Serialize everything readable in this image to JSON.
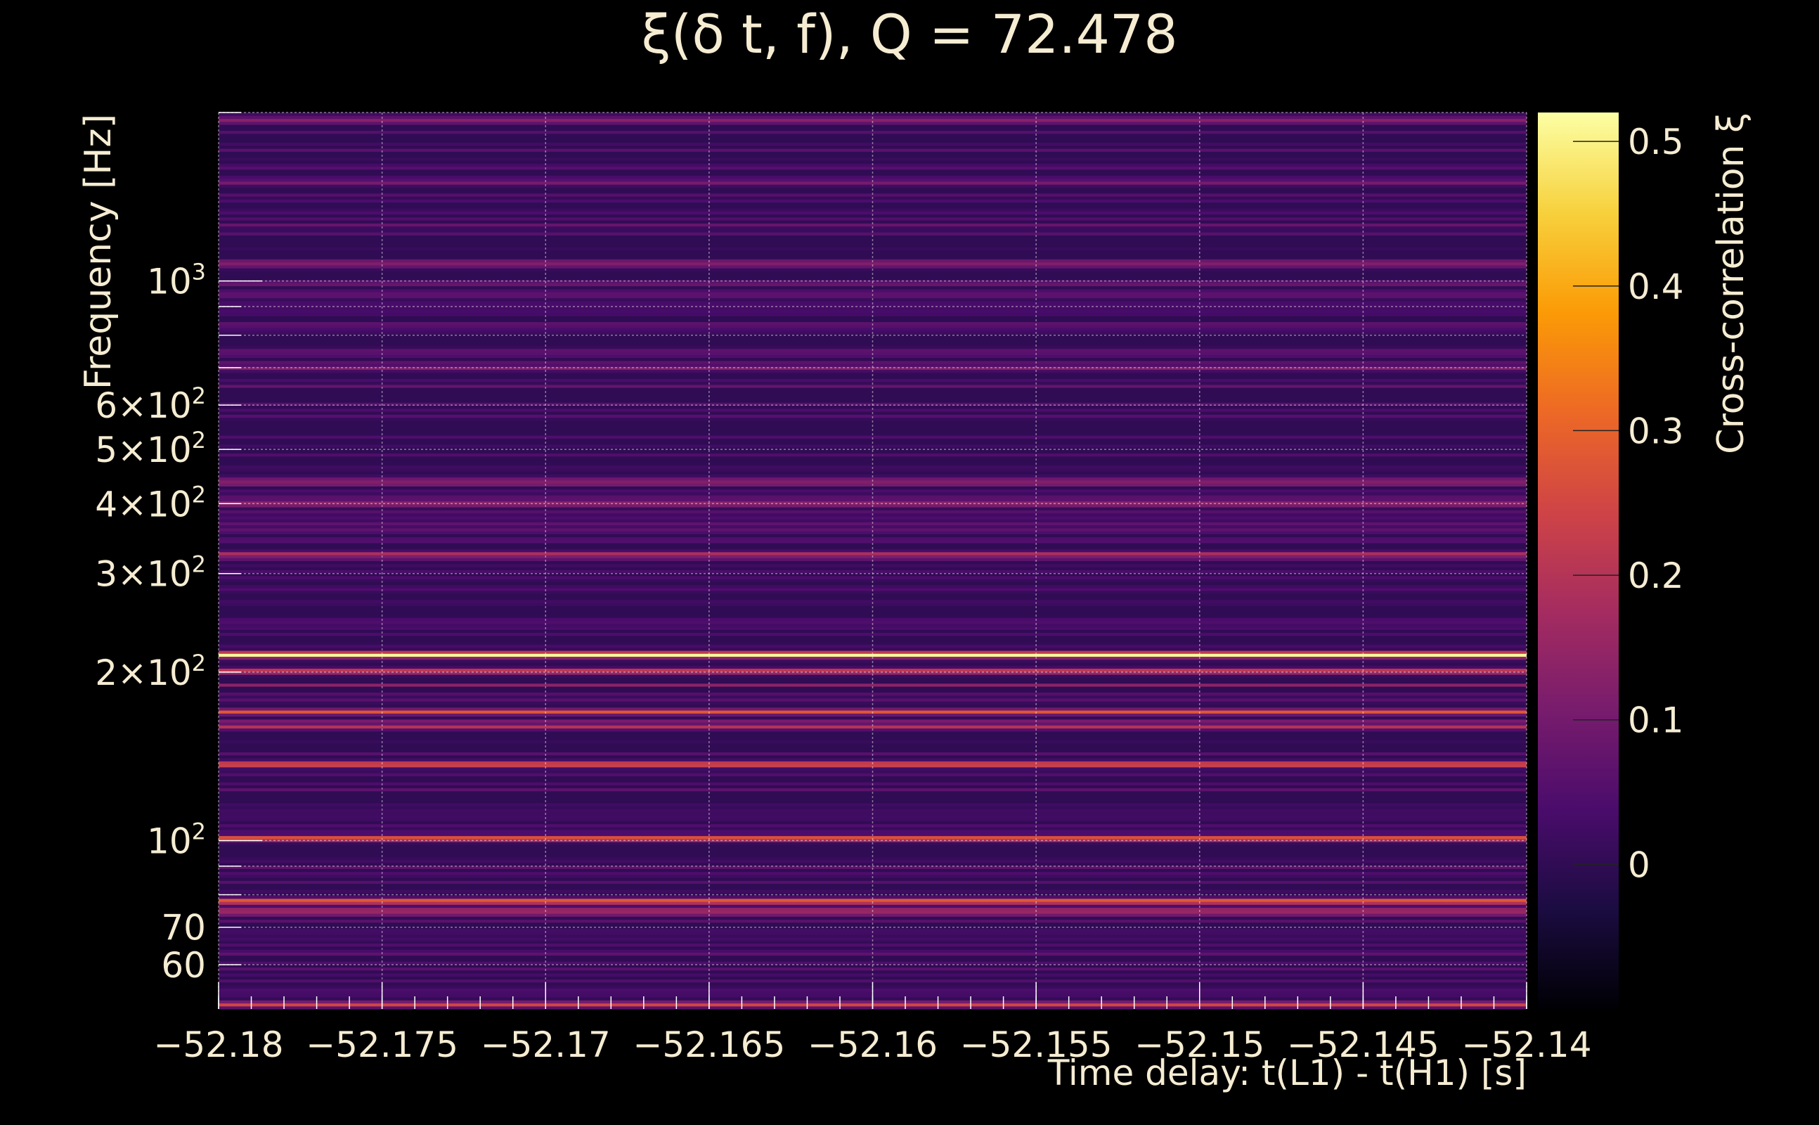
{
  "chart_data": {
    "type": "heatmap",
    "title": "ξ(δ t, f), Q = 72.478",
    "xlabel": "Time delay: t(L1) - t(H1) [s]",
    "ylabel": "Frequency [Hz]",
    "colorbar_label": "Cross-correlation ξ",
    "xlim": [
      -52.18,
      -52.14
    ],
    "ylim": [
      50,
      2000
    ],
    "yscale": "log",
    "clim": [
      -0.1,
      0.52
    ],
    "grid": true,
    "x_ticks": [
      -52.18,
      -52.175,
      -52.17,
      -52.165,
      -52.16,
      -52.155,
      -52.15,
      -52.145,
      -52.14
    ],
    "x_tick_labels": [
      "−52.18",
      "−52.175",
      "−52.17",
      "−52.165",
      "−52.16",
      "−52.155",
      "−52.15",
      "−52.145",
      "−52.14"
    ],
    "y_ticks": [
      {
        "value": 1000,
        "base": "10",
        "exp": "3"
      },
      {
        "value": 600,
        "base": "6×10",
        "exp": "2"
      },
      {
        "value": 500,
        "base": "5×10",
        "exp": "2"
      },
      {
        "value": 400,
        "base": "4×10",
        "exp": "2"
      },
      {
        "value": 300,
        "base": "3×10",
        "exp": "2"
      },
      {
        "value": 200,
        "base": "2×10",
        "exp": "2"
      },
      {
        "value": 100,
        "base": "10",
        "exp": "2"
      },
      {
        "value": 70,
        "base": "70",
        "exp": ""
      },
      {
        "value": 60,
        "base": "60",
        "exp": ""
      }
    ],
    "colorbar_ticks": [
      0.5,
      0.4,
      0.3,
      0.2,
      0.1,
      0
    ],
    "colorbar_tick_labels": [
      "0.5",
      "0.4",
      "0.3",
      "0.2",
      "0.1",
      "0"
    ],
    "colormap": [
      "#000004",
      "#1b0c41",
      "#4a0c6b",
      "#781c6d",
      "#a52c60",
      "#cf4446",
      "#ed6925",
      "#fb9b06",
      "#f7d13d",
      "#fcffa4"
    ],
    "peaks": [
      {
        "frequency": 215,
        "xi": 0.52
      },
      {
        "frequency": 201,
        "xi": 0.25
      },
      {
        "frequency": 170,
        "xi": 0.28
      },
      {
        "frequency": 160,
        "xi": 0.2
      },
      {
        "frequency": 137,
        "xi": 0.3
      },
      {
        "frequency": 101,
        "xi": 0.3
      },
      {
        "frequency": 78,
        "xi": 0.32
      },
      {
        "frequency": 75,
        "xi": 0.2
      },
      {
        "frequency": 325,
        "xi": 0.2
      },
      {
        "frequency": 400,
        "xi": 0.16
      },
      {
        "frequency": 440,
        "xi": 0.14
      },
      {
        "frequency": 700,
        "xi": 0.12
      },
      {
        "frequency": 51,
        "xi": 0.25
      }
    ]
  }
}
